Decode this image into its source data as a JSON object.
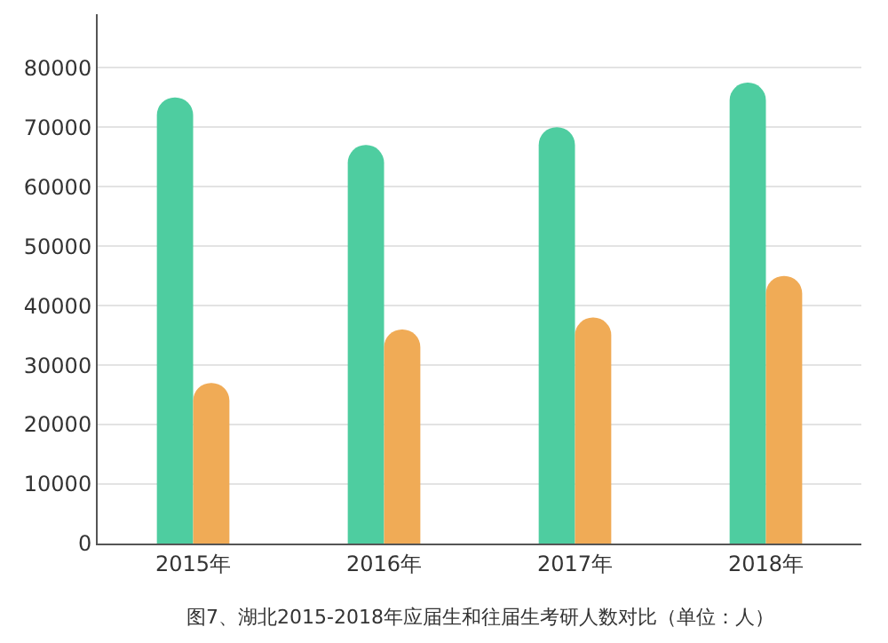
{
  "chart_data": {
    "type": "bar",
    "categories": [
      "2015年",
      "2016年",
      "2017年",
      "2018年"
    ],
    "series": [
      {
        "color": "#4ecda0",
        "values": [
          75000,
          67000,
          70000,
          77500
        ]
      },
      {
        "color": "#f0ab56",
        "values": [
          27000,
          36000,
          38000,
          45000
        ]
      }
    ],
    "ylim": [
      0,
      89000
    ],
    "yticks": [
      0,
      10000,
      20000,
      30000,
      40000,
      50000,
      60000,
      70000,
      80000
    ],
    "grid": "y",
    "annotations": [
      "图7、湖北2015-2018年应届生和往届生考研人数对比（单位：人）"
    ]
  }
}
